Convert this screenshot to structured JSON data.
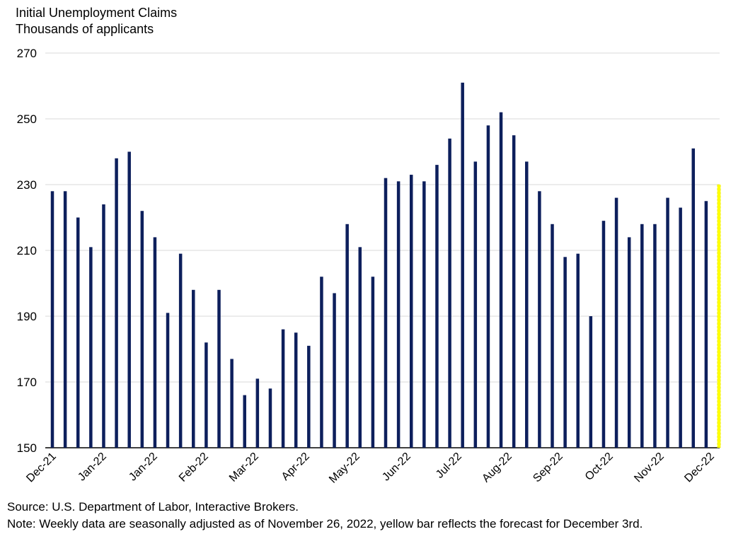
{
  "title_line1": "Initial Unemployment Claims",
  "title_line2": "Thousands of applicants",
  "source": "Source: U.S. Department of Labor, Interactive Brokers.",
  "note": "Note: Weekly data are seasonally adjusted as of November 26, 2022, yellow bar reflects the forecast for December 3rd.",
  "colors": {
    "bar": "#0d1f5c",
    "forecast": "#ffff00",
    "grid": "#d9d9d9",
    "axis": "#000000"
  },
  "chart_data": {
    "type": "bar",
    "title": "Initial Unemployment Claims",
    "subtitle": "Thousands of applicants",
    "ylim": [
      150,
      270
    ],
    "yticks": [
      150,
      170,
      190,
      210,
      230,
      250,
      270
    ],
    "x_tick_labels": [
      "Dec-21",
      "Jan-22",
      "Jan-22",
      "Feb-22",
      "Mar-22",
      "Apr-22",
      "May-22",
      "Jun-22",
      "Jul-22",
      "Aug-22",
      "Sep-22",
      "Oct-22",
      "Nov-22",
      "Dec-22"
    ],
    "values": [
      228,
      228,
      220,
      211,
      224,
      238,
      240,
      222,
      214,
      191,
      209,
      198,
      182,
      198,
      177,
      166,
      171,
      168,
      186,
      185,
      181,
      202,
      197,
      218,
      211,
      202,
      232,
      231,
      233,
      231,
      236,
      244,
      261,
      237,
      248,
      252,
      245,
      237,
      228,
      218,
      208,
      209,
      190,
      219,
      226,
      214,
      218,
      218,
      226,
      223,
      241,
      225,
      230
    ],
    "forecast_index": 52,
    "grid": true
  }
}
